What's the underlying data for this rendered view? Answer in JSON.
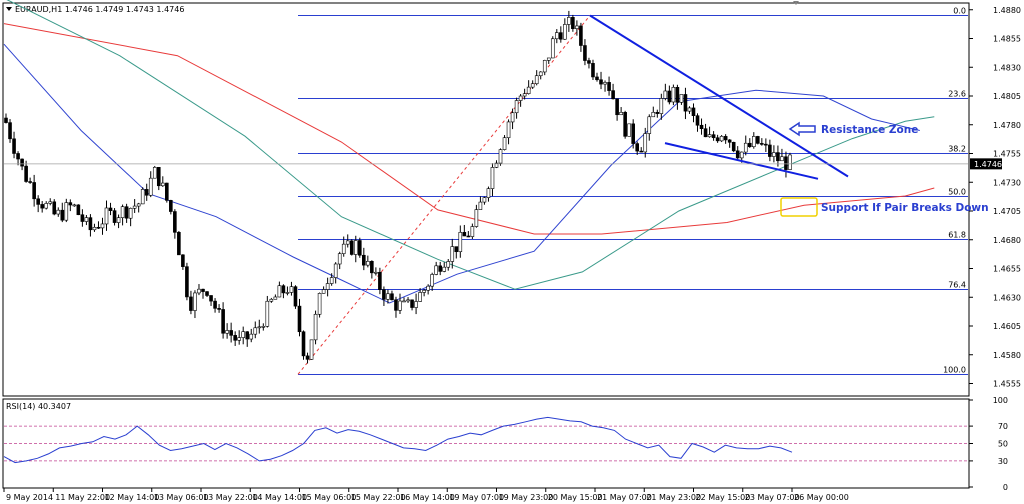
{
  "header": {
    "text": "EURAUD,H1  1.4746 1.4749 1.4743 1.4746"
  },
  "rsi_header": {
    "text": "RSI(14) 40.3407"
  },
  "chart_data": {
    "type": "candlestick",
    "symbol": "EURAUD",
    "timeframe": "H1",
    "ohlc_header": {
      "open": 1.4746,
      "high": 1.4749,
      "low": 1.4743,
      "close": 1.4746
    },
    "current_price": {
      "label": "1.4746",
      "value": 1.4746
    },
    "price_axis": {
      "ylim": [
        1.4545,
        1.4885
      ],
      "ticks": [
        "1.4880",
        "1.4855",
        "1.4830",
        "1.4805",
        "1.4780",
        "1.4755",
        "1.4730",
        "1.4705",
        "1.4680",
        "1.4655",
        "1.4630",
        "1.4605",
        "1.4580",
        "1.4555"
      ]
    },
    "time_axis": {
      "labels": [
        "9 May 2014",
        "11 May 22:00",
        "12 May 14:00",
        "13 May 06:00",
        "13 May 22:00",
        "14 May 14:00",
        "15 May 06:00",
        "15 May 22:00",
        "16 May 14:00",
        "19 May 07:00",
        "19 May 23:00",
        "20 May 15:00",
        "21 May 07:00",
        "21 May 23:00",
        "22 May 15:00",
        "23 May 07:00",
        "26 May 00:00"
      ]
    },
    "price_path": [
      1.4782,
      1.474,
      1.4715,
      1.47,
      1.471,
      1.4688,
      1.47,
      1.4705,
      1.4712,
      1.474,
      1.47,
      1.4625,
      1.464,
      1.4605,
      1.459,
      1.46,
      1.4628,
      1.464,
      1.4575,
      1.464,
      1.4668,
      1.4676,
      1.4648,
      1.4627,
      1.462,
      1.4635,
      1.466,
      1.4675,
      1.469,
      1.4735,
      1.478,
      1.481,
      1.482,
      1.486,
      1.4868,
      1.483,
      1.482,
      1.478,
      1.476,
      1.4795,
      1.4808,
      1.479,
      1.4765,
      1.4775,
      1.4755,
      1.4765,
      1.4752,
      1.4746
    ],
    "fibonacci": {
      "levels": [
        {
          "label": "0.0",
          "price": 1.4875
        },
        {
          "label": "23.6",
          "price": 1.4803
        },
        {
          "label": "38.2",
          "price": 1.4755
        },
        {
          "label": "50.0",
          "price": 1.4718
        },
        {
          "label": "61.8",
          "price": 1.4681
        },
        {
          "label": "76.4",
          "price": 1.4637
        },
        {
          "label": "100.0",
          "price": 1.4563
        }
      ]
    },
    "moving_averages": [
      {
        "color": "#e83a3a",
        "points": [
          [
            0.0,
            1.4868
          ],
          [
            0.18,
            1.484
          ],
          [
            0.35,
            1.4765
          ],
          [
            0.45,
            1.4706
          ],
          [
            0.55,
            1.4685
          ],
          [
            0.62,
            1.4685
          ],
          [
            0.75,
            1.4695
          ],
          [
            0.83,
            1.471
          ],
          [
            0.935,
            1.4718
          ],
          [
            0.965,
            1.4725
          ]
        ]
      },
      {
        "color": "#3a9a8a",
        "points": [
          [
            0.0,
            1.489
          ],
          [
            0.12,
            1.484
          ],
          [
            0.25,
            1.477
          ],
          [
            0.35,
            1.47
          ],
          [
            0.45,
            1.4663
          ],
          [
            0.53,
            1.4637
          ],
          [
            0.6,
            1.4652
          ],
          [
            0.7,
            1.4705
          ],
          [
            0.8,
            1.474
          ],
          [
            0.88,
            1.4768
          ],
          [
            0.935,
            1.4783
          ],
          [
            0.965,
            1.4787
          ]
        ]
      },
      {
        "color": "#3044d0",
        "points": [
          [
            0.0,
            1.485
          ],
          [
            0.08,
            1.4775
          ],
          [
            0.15,
            1.472
          ],
          [
            0.22,
            1.47
          ],
          [
            0.3,
            1.4665
          ],
          [
            0.35,
            1.4645
          ],
          [
            0.4,
            1.4625
          ],
          [
            0.47,
            1.465
          ],
          [
            0.55,
            1.467
          ],
          [
            0.63,
            1.4745
          ],
          [
            0.7,
            1.48
          ],
          [
            0.78,
            1.481
          ],
          [
            0.85,
            1.4805
          ],
          [
            0.9,
            1.4785
          ],
          [
            0.95,
            1.4775
          ]
        ]
      }
    ],
    "annotations": [
      {
        "id": "resistance",
        "text": "Resistance Zone",
        "color": "#2a3fd0"
      },
      {
        "id": "support",
        "text": "Support If Pair Breaks Down",
        "color": "#2a3fd0",
        "box_color": "#f0d000"
      }
    ],
    "rsi": {
      "period": 14,
      "value": 40.3407,
      "ylim": [
        0,
        100
      ],
      "ticks": [
        "100",
        "70",
        "50",
        "30",
        "0"
      ],
      "levels": [
        70,
        50,
        30
      ],
      "values": [
        35,
        28,
        30,
        33,
        38,
        45,
        47,
        50,
        52,
        58,
        55,
        60,
        70,
        60,
        48,
        42,
        44,
        47,
        50,
        43,
        50,
        45,
        38,
        30,
        32,
        36,
        42,
        50,
        65,
        68,
        62,
        66,
        64,
        60,
        55,
        50,
        45,
        44,
        42,
        48,
        55,
        58,
        62,
        60,
        65,
        70,
        72,
        75,
        78,
        80,
        78,
        76,
        75,
        70,
        68,
        65,
        55,
        50,
        45,
        48,
        35,
        33,
        50,
        46,
        40,
        48,
        45,
        44,
        44,
        47,
        45,
        40
      ]
    }
  }
}
